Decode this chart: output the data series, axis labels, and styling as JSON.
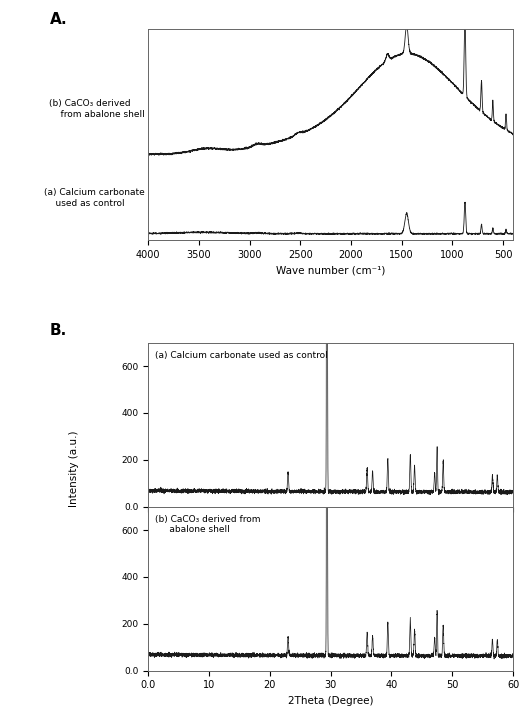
{
  "panel_A_label": "A.",
  "panel_B_label": "B.",
  "ir_xlabel": "Wave number (cm⁻¹)",
  "ir_xticks": [
    4000,
    3500,
    3000,
    2500,
    2000,
    1500,
    1000,
    500
  ],
  "label_a_ir": "(a) Calcium carbonate\n    used as control",
  "label_b_ir": "(b) CaCO₃ derived\n    from abalone shell",
  "xrd_xlabel": "2Theta (Degree)",
  "xrd_ylabel": "Intensity (a.u.)",
  "xrd_xlim": [
    0,
    60
  ],
  "xrd_xticks": [
    0,
    10,
    20,
    30,
    40,
    50,
    60
  ],
  "xrd_xticklabels": [
    "0.0",
    "10",
    "20",
    "30",
    "40",
    "50",
    "60"
  ],
  "xrd_yticks": [
    0,
    200,
    400,
    600
  ],
  "xrd_yticklabels": [
    "0.0",
    "200",
    "400",
    "600"
  ],
  "label_a_xrd": "(a) Calcium carbonate used as control",
  "label_b_xrd": "(b) CaCO₃ derived from\n     abalone shell",
  "background_color": "#ffffff",
  "line_color": "#1a1a1a"
}
